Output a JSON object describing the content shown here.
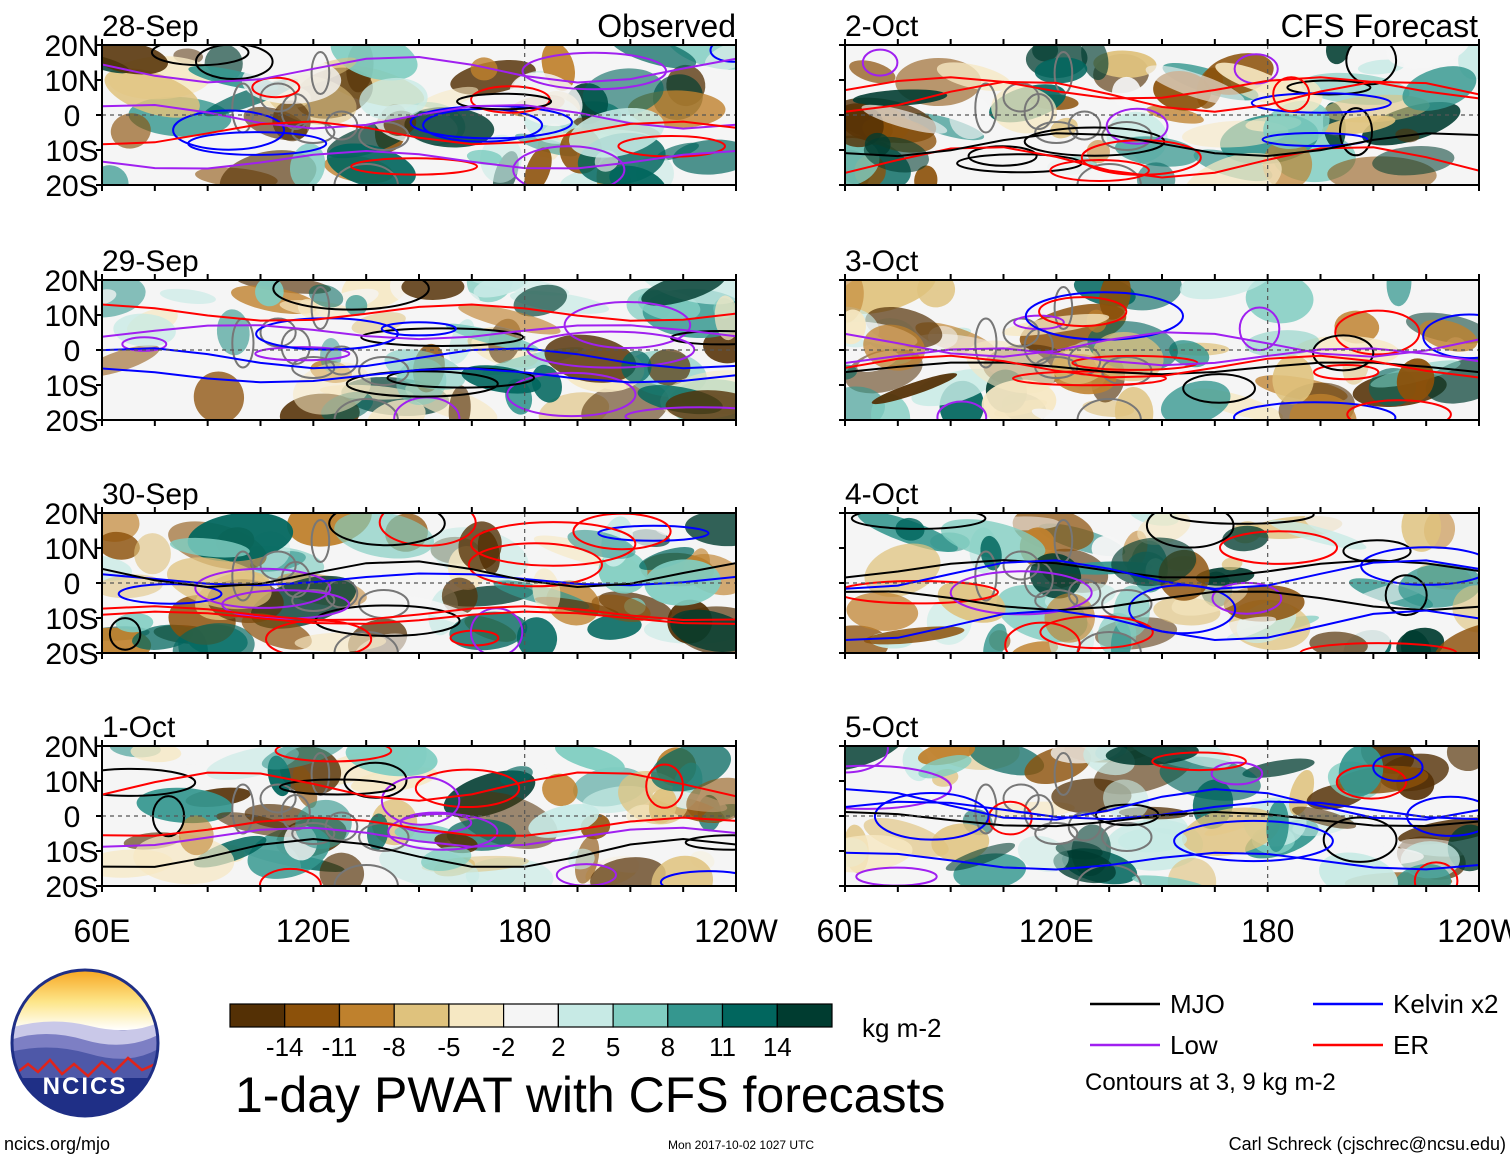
{
  "chart_data": {
    "type": "heatmap",
    "title": "1-day PWAT with CFS forecasts",
    "column_titles": {
      "left": "Observed",
      "right": "CFS Forecast"
    },
    "panels": [
      {
        "date": "28-Sep",
        "column": "Observed"
      },
      {
        "date": "29-Sep",
        "column": "Observed"
      },
      {
        "date": "30-Sep",
        "column": "Observed"
      },
      {
        "date": "1-Oct",
        "column": "Observed"
      },
      {
        "date": "2-Oct",
        "column": "CFS Forecast"
      },
      {
        "date": "3-Oct",
        "column": "CFS Forecast"
      },
      {
        "date": "4-Oct",
        "column": "CFS Forecast"
      },
      {
        "date": "5-Oct",
        "column": "CFS Forecast"
      }
    ],
    "x_axis": {
      "ticks": [
        "60E",
        "120E",
        "180",
        "120W"
      ],
      "range_deg_east": [
        60,
        240
      ]
    },
    "y_axis": {
      "ticks": [
        "20N",
        "10N",
        "0",
        "10S",
        "20S"
      ],
      "range_deg": [
        20,
        -20
      ]
    },
    "colorbar": {
      "unit": "kg m-2",
      "tick_labels": [
        "-14",
        "-11",
        "-8",
        "-5",
        "-2",
        "2",
        "5",
        "8",
        "11",
        "14"
      ],
      "colors": [
        "#543005",
        "#8c510a",
        "#bf812d",
        "#dfc27d",
        "#f6e8c3",
        "#f5f5f5",
        "#c7eae5",
        "#80cdc1",
        "#35978f",
        "#01665e",
        "#003c30"
      ]
    },
    "legend": {
      "items": [
        {
          "label": "MJO",
          "color": "#000000"
        },
        {
          "label": "Kelvin x2",
          "color": "#0000ff"
        },
        {
          "label": "Low",
          "color": "#a020f0"
        },
        {
          "label": "ER",
          "color": "#ff0000"
        }
      ],
      "note": "Contours at 3, 9 kg m-2"
    }
  },
  "logo": {
    "text": "NCICS"
  },
  "footer": {
    "left": "ncics.org/mjo",
    "center": "Mon 2017-10-02 1027 UTC",
    "right": "Carl Schreck (cjschrec@ncsu.edu)"
  }
}
